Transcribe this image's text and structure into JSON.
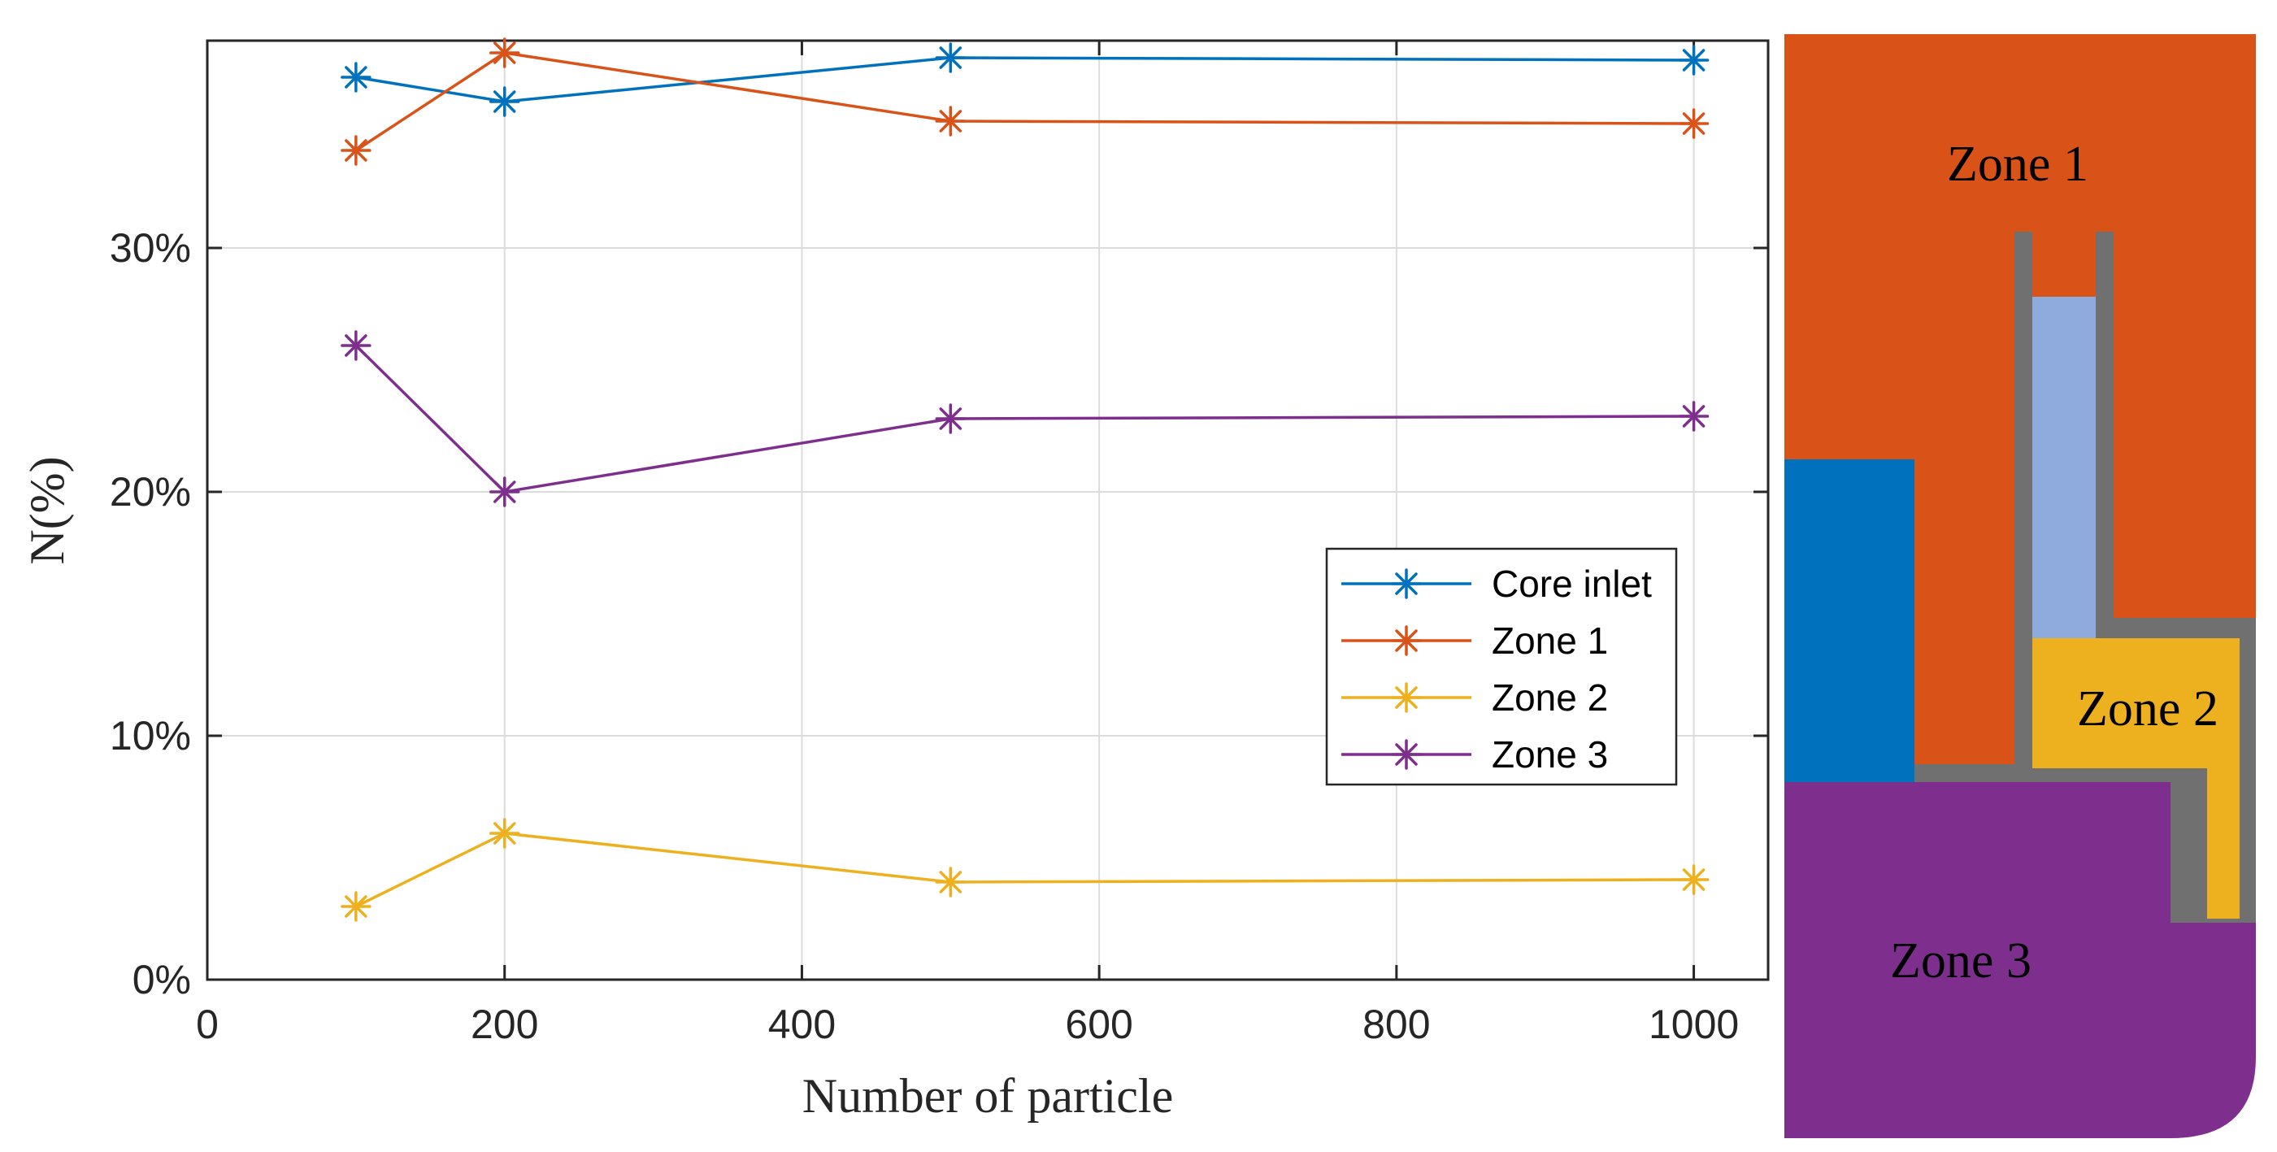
{
  "chart_data": {
    "type": "line",
    "title": "",
    "xlabel": "Number of particle",
    "ylabel": "N(%)",
    "xlim": [
      0,
      1050
    ],
    "ylim": [
      0,
      38.5
    ],
    "x_ticks": [
      0,
      200,
      400,
      600,
      800,
      1000
    ],
    "x_tick_labels": [
      "0",
      "200",
      "400",
      "600",
      "800",
      "1000"
    ],
    "y_ticks": [
      0,
      10,
      20,
      30
    ],
    "y_tick_labels": [
      "0%",
      "10%",
      "20%",
      "30%"
    ],
    "grid": true,
    "legend_position": "center-right",
    "marker": "asterisk",
    "x": [
      100,
      200,
      500,
      1000
    ],
    "series": [
      {
        "name": "Core inlet",
        "color": "#0072bd",
        "values": [
          37.0,
          36.0,
          37.8,
          37.7
        ]
      },
      {
        "name": "Zone 1",
        "color": "#d95319",
        "values": [
          34.0,
          38.0,
          35.2,
          35.1
        ]
      },
      {
        "name": "Zone 2",
        "color": "#edb120",
        "values": [
          3.0,
          6.0,
          4.0,
          4.1
        ]
      },
      {
        "name": "Zone 3",
        "color": "#7e2f8e",
        "values": [
          26.0,
          20.0,
          23.0,
          23.1
        ]
      }
    ]
  },
  "zone_diagram": {
    "labels": [
      "Zone 1",
      "Zone 2",
      "Zone 3"
    ],
    "colors": {
      "zone1": "#d95319",
      "zone2": "#edb120",
      "zone3": "#7e2f8e",
      "core_inlet": "#0072bd",
      "channel": "#8faadc",
      "wall": "#707070"
    }
  }
}
